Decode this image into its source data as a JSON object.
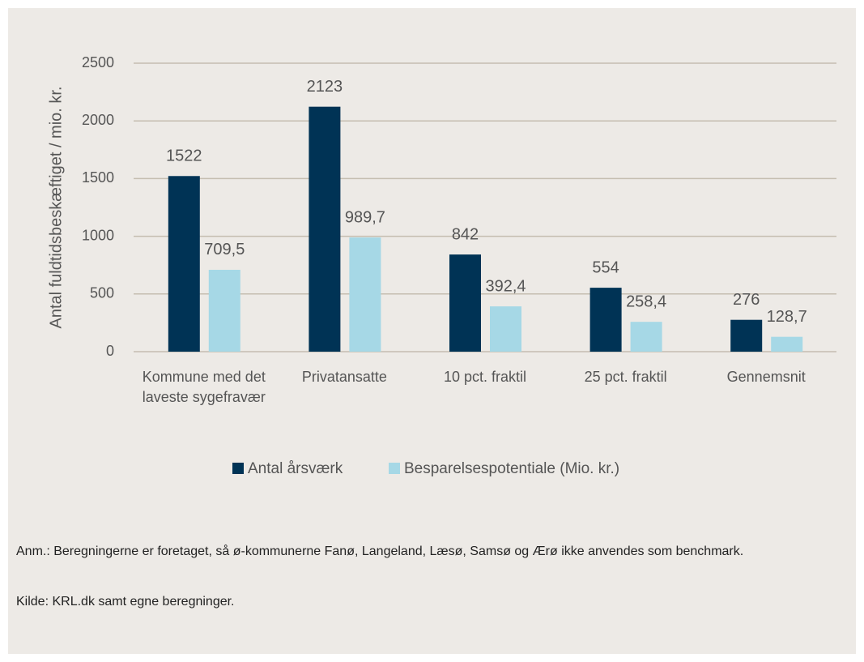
{
  "chart_data": {
    "type": "bar",
    "y_label": "Antal fuldtidsbeskæftiget / mio. kr.",
    "categories": [
      "Kommune med det laveste sygefravær",
      "Privatansatte",
      "10 pct. fraktil",
      "25 pct. fraktil",
      "Gennemsnit"
    ],
    "series": [
      {
        "name": "Antal årsværk",
        "color": "#003355",
        "values": [
          1522,
          2123,
          842,
          554,
          276
        ]
      },
      {
        "name": "Besparelsespotentiale (Mio. kr.)",
        "color": "#a6d8e6",
        "values": [
          709.5,
          989.7,
          392.4,
          258.4,
          128.7
        ],
        "value_labels": [
          "709,5",
          "989,7",
          "392,4",
          "258,4",
          "128,7"
        ]
      }
    ],
    "ylim": [
      0,
      2500
    ],
    "yticks": [
      0,
      500,
      1000,
      1500,
      2000,
      2500
    ],
    "grid": true,
    "legend": "bottom",
    "notes": [
      "Anm.: Beregningerne er foretaget, så ø-kommunerne Fanø, Langeland, Læsø, Samsø og Ærø ikke anvendes som benchmark.",
      "Kilde: KRL.dk samt egne beregninger."
    ]
  }
}
